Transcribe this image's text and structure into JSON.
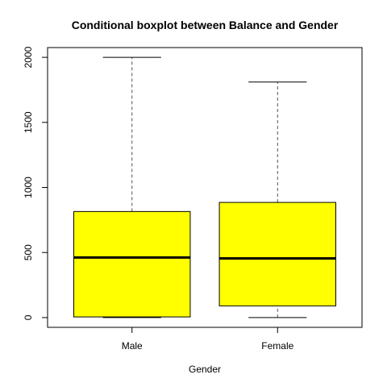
{
  "chart_data": {
    "type": "boxplot",
    "title": "Conditional boxplot between Balance and Gender",
    "xlabel": "Gender",
    "ylabel": "",
    "categories": [
      "Male",
      "Female"
    ],
    "boxes": [
      {
        "category": "Male",
        "min": 0,
        "q1": 5,
        "median": 462,
        "q3": 815,
        "max": 2000
      },
      {
        "category": "Female",
        "min": 0,
        "q1": 90,
        "median": 455,
        "q3": 885,
        "max": 1810
      }
    ],
    "ylim": [
      -75,
      2075
    ],
    "yticks": [
      0,
      500,
      1000,
      1500,
      2000
    ],
    "ytick_labels": [
      "0",
      "500",
      "1000",
      "1500",
      "2000"
    ],
    "box_fill": "#ffff00",
    "box_stroke": "#000000",
    "whisker_color": "#555555",
    "grid": false,
    "legend": "none"
  }
}
